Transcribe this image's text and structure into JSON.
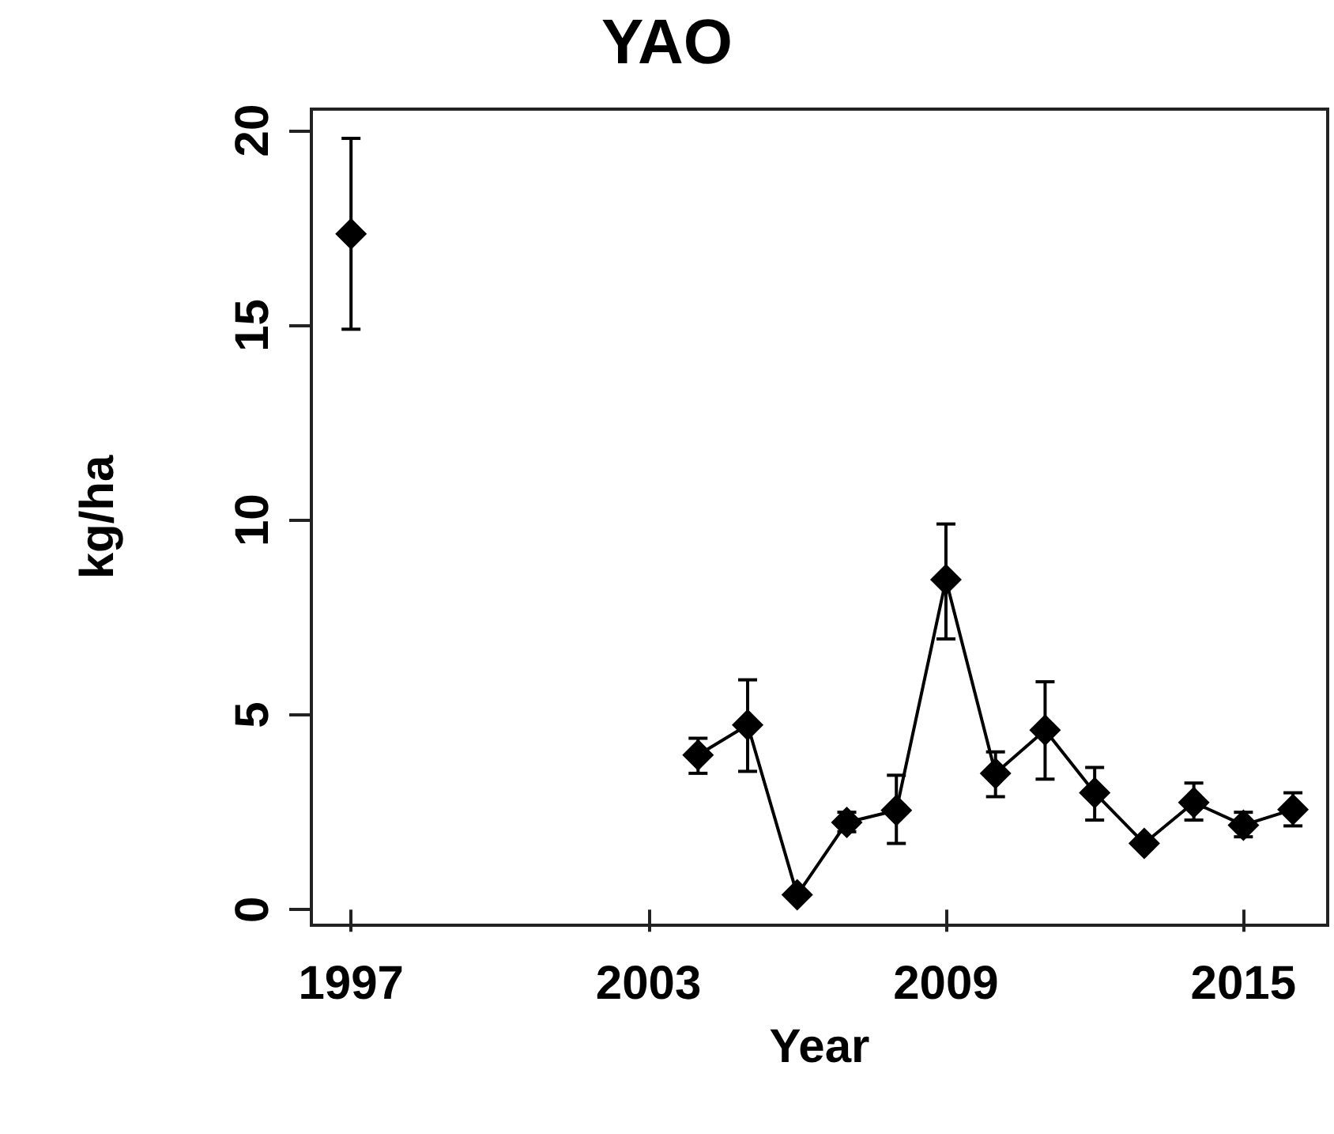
{
  "chart_data": {
    "type": "line",
    "title": "YAO",
    "xlabel": "Year",
    "ylabel": "kg/ha",
    "x": [
      1997,
      2000,
      2004,
      2005,
      2006,
      2007,
      2008,
      2009,
      2010,
      2011,
      2012,
      2013,
      2014,
      2015,
      2016
    ],
    "series": [
      {
        "color": "#000000",
        "values": [
          17.35,
          null,
          3.97,
          4.74,
          0.38,
          2.24,
          2.55,
          8.47,
          3.5,
          4.61,
          3.0,
          1.7,
          2.75,
          2.17,
          2.57
        ],
        "errors": [
          [
            14.9,
            19.8
          ],
          null,
          [
            3.5,
            4.4
          ],
          [
            3.55,
            5.9
          ],
          null,
          [
            2.0,
            2.5
          ],
          [
            1.7,
            3.45
          ],
          [
            6.95,
            9.9
          ],
          [
            2.9,
            4.05
          ],
          [
            3.35,
            5.85
          ],
          [
            2.3,
            3.65
          ],
          null,
          [
            2.3,
            3.25
          ],
          [
            1.87,
            2.5
          ],
          [
            2.15,
            3.0
          ]
        ]
      }
    ],
    "xlim": [
      1996.2,
      2016.7
    ],
    "xticks": [
      1997,
      2003,
      2009,
      2015
    ],
    "ylim": [
      -0.4,
      20.55
    ],
    "yticks": [
      0,
      5,
      10,
      15,
      20
    ],
    "marker": "diamond",
    "line_style": "solid",
    "grid": false
  }
}
